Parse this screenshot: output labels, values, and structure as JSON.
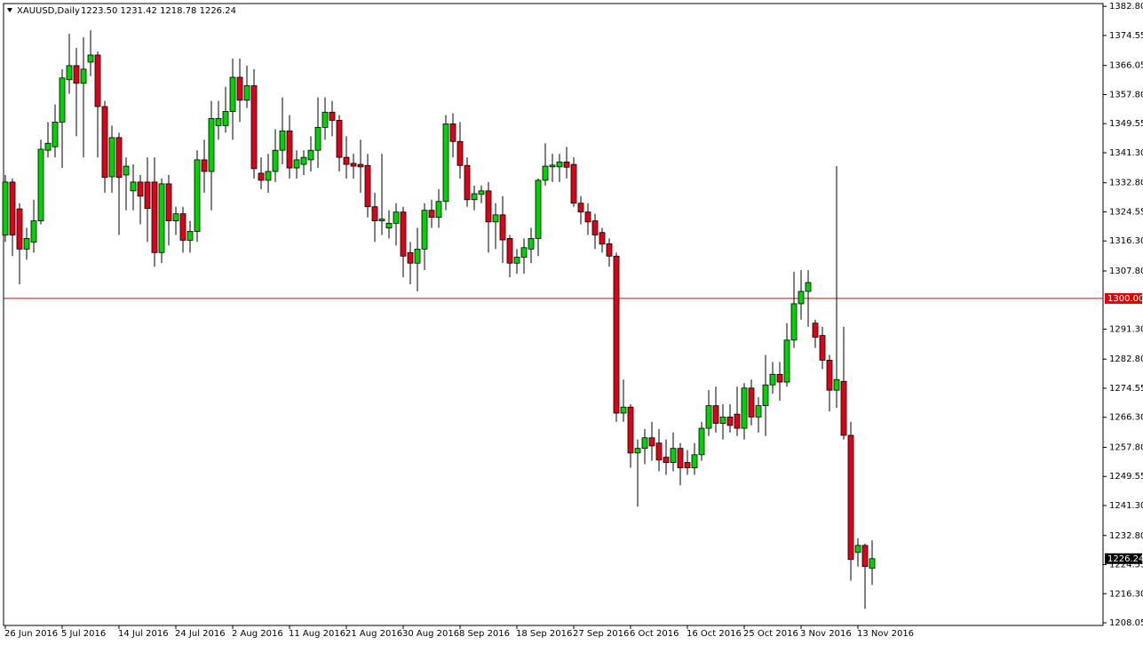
{
  "chart_data": {
    "type": "candlestick",
    "symbol": "XAUUSD,Daily",
    "quote": "1223.50 1231.42 1218.78 1226.24",
    "categories": [
      "26 Jun 2016",
      null,
      null,
      null,
      null,
      null,
      null,
      null,
      "5 Jul 2016",
      null,
      null,
      null,
      null,
      null,
      null,
      null,
      "14 Jul 2016",
      null,
      null,
      null,
      null,
      null,
      null,
      null,
      "24 Jul 2016",
      null,
      null,
      null,
      null,
      null,
      null,
      null,
      "2 Aug 2016",
      null,
      null,
      null,
      null,
      null,
      null,
      null,
      "11 Aug 2016",
      null,
      null,
      null,
      null,
      null,
      null,
      null,
      "21 Aug 2016",
      null,
      null,
      null,
      null,
      null,
      null,
      null,
      "30 Aug 2016",
      null,
      null,
      null,
      null,
      null,
      null,
      null,
      "8 Sep 2016",
      null,
      null,
      null,
      null,
      null,
      null,
      null,
      "18 Sep 2016",
      null,
      null,
      null,
      null,
      null,
      null,
      null,
      "27 Sep 2016",
      null,
      null,
      null,
      null,
      null,
      null,
      null,
      "6 Oct 2016",
      null,
      null,
      null,
      null,
      null,
      null,
      null,
      "16 Oct 2016",
      null,
      null,
      null,
      null,
      null,
      null,
      null,
      "25 Oct 2016",
      null,
      null,
      null,
      null,
      null,
      null,
      null,
      "3 Nov 2016",
      null,
      null,
      null,
      null,
      null,
      null,
      null,
      "13 Nov 2016",
      null,
      null
    ],
    "open": [
      1318,
      1333,
      1325.4,
      1314,
      1316,
      1322,
      1342,
      1343,
      1350,
      1362,
      1366,
      1361,
      1367,
      1369,
      1354.4,
      1334.5,
      1345.6,
      1335,
      1330.5,
      1333,
      1333,
      1333,
      1313,
      1332.5,
      1322,
      1324,
      1316.5,
      1319,
      1339.3,
      1336,
      1349,
      1349,
      1353,
      1362.7,
      1356.2,
      1360.3,
      1335.5,
      1333.5,
      1336,
      1342,
      1347.5,
      1337,
      1338,
      1339.3,
      1342,
      1348.5,
      1352.8,
      1350.5,
      1340,
      1338.3,
      1338,
      1337.7,
      1326,
      1322,
      1320,
      1321.3,
      1324.5,
      1313,
      1310,
      1314,
      1325,
      1323,
      1327.5,
      1349.5,
      1344.5,
      1337.7,
      1328,
      1329.5,
      1330.5,
      1321.7,
      1323.7,
      1317,
      1310,
      1311.7,
      1314,
      1317,
      1333.5,
      1337.3,
      1337.3,
      1338.7,
      1338,
      1327,
      1324.5,
      1322,
      1318.7,
      1315.5,
      1312,
      1267.5,
      1269.2,
      1256.2,
      1257.5,
      1260.5,
      1259,
      1255,
      1253.5,
      1257.5,
      1253.5,
      1252,
      1255.7,
      1263.2,
      1269.6,
      1264.6,
      1266.4,
      1267.2,
      1263.2,
      1274.6,
      1266.4,
      1269.6,
      1275.5,
      1278.5,
      1276.3,
      1288.2,
      1298.5,
      1302,
      1293,
      1289.5,
      1282.5,
      1274,
      1276.5,
      1261.2,
      1228,
      1230,
      1223.5
    ],
    "high": [
      1335,
      1334,
      1327,
      1320,
      1328,
      1345,
      1350,
      1355,
      1365,
      1375,
      1371,
      1374,
      1376,
      1370,
      1356,
      1349,
      1347,
      1340,
      1338,
      1335,
      1340,
      1340,
      1334,
      1335,
      1326,
      1326,
      1322,
      1342,
      1345,
      1356,
      1356,
      1360,
      1368,
      1368,
      1366,
      1365,
      1340,
      1341,
      1348,
      1357,
      1352,
      1342,
      1342,
      1346,
      1357,
      1357,
      1356,
      1352,
      1346,
      1341,
      1345,
      1341,
      1330,
      1341,
      1325,
      1327,
      1326,
      1316,
      1320,
      1327,
      1328,
      1331,
      1352,
      1352.5,
      1350,
      1340,
      1332,
      1332,
      1333,
      1327,
      1329,
      1318,
      1314,
      1317,
      1320,
      1334,
      1344,
      1341,
      1341,
      1343,
      1340,
      1329,
      1327,
      1324,
      1320,
      1317,
      1313,
      1277,
      1270,
      1260,
      1263,
      1265,
      1263,
      1260,
      1262,
      1259,
      1257,
      1259,
      1265,
      1274,
      1275,
      1270,
      1270,
      1275,
      1276,
      1277,
      1272,
      1284,
      1282,
      1282,
      1293,
      1307.5,
      1308,
      1308,
      1294,
      1292,
      1284,
      1337.5,
      1292,
      1265,
      1232,
      1230.5,
      1231.42
    ],
    "low": [
      1316,
      1312,
      1304,
      1311,
      1313,
      1321,
      1340,
      1340,
      1337,
      1358,
      1346,
      1340,
      1363,
      1340,
      1330,
      1330,
      1318,
      1325,
      1325,
      1321,
      1316,
      1309,
      1310,
      1315,
      1318,
      1313,
      1313,
      1316,
      1330,
      1325,
      1345,
      1347,
      1345,
      1350,
      1354,
      1334,
      1331,
      1330,
      1333,
      1338,
      1334,
      1334,
      1335,
      1336,
      1337,
      1345,
      1346,
      1336,
      1334,
      1334,
      1330,
      1323,
      1316,
      1318,
      1317,
      1315,
      1306,
      1304,
      1302,
      1308,
      1320,
      1320,
      1325,
      1340,
      1334,
      1326,
      1325,
      1327,
      1313,
      1314,
      1310,
      1306,
      1307,
      1307,
      1310,
      1312,
      1332,
      1333,
      1333,
      1334,
      1326,
      1321,
      1318,
      1314,
      1313,
      1309,
      1265,
      1265,
      1252,
      1241,
      1253,
      1254,
      1251,
      1250,
      1251,
      1247,
      1250,
      1250,
      1254,
      1261,
      1262,
      1260,
      1262,
      1261,
      1260,
      1264,
      1262,
      1261,
      1273,
      1271,
      1275,
      1286,
      1294,
      1292,
      1286,
      1280,
      1268,
      1269,
      1260,
      1220,
      1224,
      1212,
      1218.78
    ],
    "close": [
      1333,
      1318,
      1314,
      1317,
      1322,
      1342.3,
      1344,
      1350,
      1362.5,
      1366,
      1361,
      1365,
      1369,
      1354.4,
      1334.3,
      1345.6,
      1334.3,
      1337.5,
      1333,
      1329,
      1325.5,
      1313,
      1332.5,
      1322,
      1324,
      1316.5,
      1319,
      1339.3,
      1336,
      1351,
      1351,
      1353,
      1362.7,
      1356.2,
      1360.3,
      1336.8,
      1333.5,
      1336,
      1342,
      1347.5,
      1337,
      1339.3,
      1340,
      1342,
      1348.5,
      1352.8,
      1350.5,
      1340,
      1338,
      1337.5,
      1337.3,
      1326,
      1322,
      1322.5,
      1321.3,
      1324.5,
      1312,
      1310,
      1314,
      1325,
      1323,
      1327.5,
      1349.5,
      1344.5,
      1337.7,
      1328,
      1329.7,
      1330.5,
      1321.7,
      1323.7,
      1316.6,
      1310,
      1311.7,
      1314.4,
      1317,
      1333.5,
      1337.5,
      1337.8,
      1338.7,
      1337.2,
      1327,
      1324.5,
      1321.7,
      1318,
      1315.4,
      1312,
      1267.5,
      1269.2,
      1256.2,
      1257.5,
      1260.5,
      1258.2,
      1254.2,
      1253.5,
      1257.5,
      1252,
      1252,
      1255.7,
      1263.2,
      1269.6,
      1264.6,
      1266.4,
      1264,
      1263.2,
      1274.6,
      1266.4,
      1269.6,
      1275.5,
      1278.5,
      1276.3,
      1288.2,
      1298.5,
      1302,
      1304.5,
      1289,
      1282.5,
      1274,
      1277,
      1261.2,
      1226,
      1230,
      1224,
      1226.24
    ],
    "up_color": "#00d400",
    "down_color": "#e0001a",
    "ylim": [
      1207.3,
      1383.6
    ],
    "yticks": [
      {
        "value": 1382.8,
        "label": "1382.80"
      },
      {
        "value": 1374.55,
        "label": "1374.55"
      },
      {
        "value": 1366.05,
        "label": "1366.05"
      },
      {
        "value": 1357.8,
        "label": "1357.80"
      },
      {
        "value": 1349.55,
        "label": "1349.55"
      },
      {
        "value": 1341.3,
        "label": "1341.30"
      },
      {
        "value": 1332.8,
        "label": "1332.80"
      },
      {
        "value": 1324.55,
        "label": "1324.55"
      },
      {
        "value": 1316.3,
        "label": "1316.30"
      },
      {
        "value": 1307.8,
        "label": "1307.80"
      },
      {
        "value": 1291.3,
        "label": "1291.30"
      },
      {
        "value": 1282.8,
        "label": "1282.80"
      },
      {
        "value": 1274.55,
        "label": "1274.55"
      },
      {
        "value": 1266.3,
        "label": "1266.30"
      },
      {
        "value": 1257.8,
        "label": "1257.80"
      },
      {
        "value": 1249.55,
        "label": "1249.55"
      },
      {
        "value": 1241.3,
        "label": "1241.30"
      },
      {
        "value": 1232.8,
        "label": "1232.80"
      },
      {
        "value": 1224.55,
        "label": "1224.55"
      },
      {
        "value": 1216.3,
        "label": "1216.30"
      },
      {
        "value": 1208.05,
        "label": "1208.05"
      }
    ],
    "hline": {
      "value": 1300,
      "label": "1300.00",
      "color": "#e00000"
    },
    "last_price": {
      "value": 1226.24,
      "label": "1226.24"
    }
  }
}
